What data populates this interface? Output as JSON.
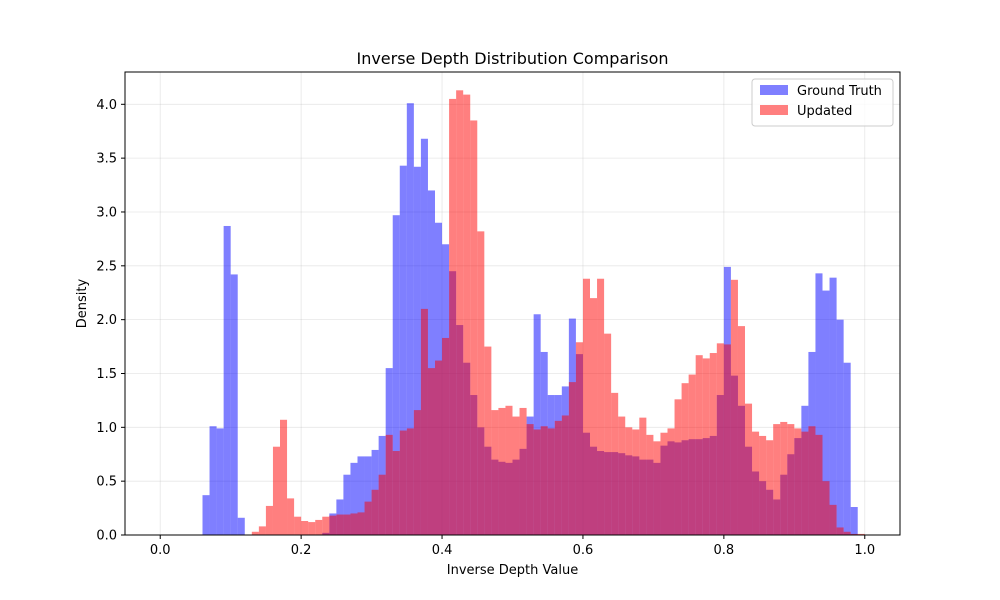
{
  "chart_data": {
    "type": "histogram",
    "title": "Inverse Depth Distribution Comparison",
    "xlabel": "Inverse Depth Value",
    "ylabel": "Density",
    "xlim": [
      -0.05,
      1.05
    ],
    "ylim": [
      0,
      4.3
    ],
    "bin_start": 0.0,
    "bin_width": 0.01,
    "xticks": [
      0.0,
      0.2,
      0.4,
      0.6,
      0.8,
      1.0
    ],
    "xtick_labels": [
      "0.0",
      "0.2",
      "0.4",
      "0.6",
      "0.8",
      "1.0"
    ],
    "yticks": [
      0.0,
      0.5,
      1.0,
      1.5,
      2.0,
      2.5,
      3.0,
      3.5,
      4.0
    ],
    "ytick_labels": [
      "0.0",
      "0.5",
      "1.0",
      "1.5",
      "2.0",
      "2.5",
      "3.0",
      "3.5",
      "4.0"
    ],
    "grid": true,
    "legend_position": "top-right",
    "overlap_color": "#c13c76",
    "series": [
      {
        "name": "Ground Truth",
        "color": "#0000ff",
        "alpha": 0.5,
        "values": [
          0,
          0,
          0,
          0,
          0,
          0,
          0.37,
          1.01,
          0.99,
          2.87,
          2.42,
          0.16,
          0,
          0,
          0,
          0,
          0,
          0,
          0,
          0,
          0,
          0,
          0,
          0.02,
          0.2,
          0.33,
          0.56,
          0.67,
          0.73,
          0.73,
          0.79,
          0.92,
          1.55,
          2.97,
          3.43,
          4.01,
          3.42,
          3.68,
          3.2,
          2.9,
          2.7,
          2.45,
          1.95,
          1.6,
          1.3,
          1.0,
          0.82,
          0.7,
          0.68,
          0.67,
          0.7,
          0.8,
          1.1,
          2.05,
          1.7,
          1.3,
          1.3,
          1.38,
          2.01,
          1.68,
          0.95,
          0.82,
          0.78,
          0.77,
          0.77,
          0.76,
          0.74,
          0.73,
          0.7,
          0.7,
          0.67,
          0.83,
          0.87,
          0.86,
          0.88,
          0.89,
          0.89,
          0.9,
          0.92,
          1.3,
          2.49,
          1.48,
          1.2,
          0.82,
          0.59,
          0.5,
          0.42,
          0.33,
          0.56,
          0.75,
          0.9,
          1.2,
          1.7,
          2.43,
          2.27,
          2.39,
          2.0,
          1.6,
          0.26,
          0,
          0
        ]
      },
      {
        "name": "Updated",
        "color": "#ff0000",
        "alpha": 0.5,
        "values": [
          0,
          0,
          0,
          0,
          0,
          0,
          0,
          0,
          0,
          0,
          0,
          0,
          0,
          0.03,
          0.08,
          0.27,
          0.82,
          1.07,
          0.34,
          0.17,
          0.13,
          0.12,
          0.14,
          0.17,
          0.18,
          0.19,
          0.19,
          0.2,
          0.21,
          0.31,
          0.42,
          0.56,
          0.93,
          0.78,
          0.97,
          0.99,
          1.16,
          2.1,
          1.55,
          1.62,
          1.83,
          4.05,
          4.13,
          4.09,
          3.85,
          2.82,
          1.75,
          1.16,
          1.18,
          1.2,
          1.1,
          1.18,
          1.03,
          0.98,
          1.01,
          0.99,
          1.06,
          1.11,
          1.42,
          1.79,
          2.38,
          2.2,
          2.38,
          1.87,
          1.32,
          1.1,
          1.0,
          0.98,
          1.09,
          0.93,
          0.87,
          0.95,
          0.99,
          1.26,
          1.41,
          1.49,
          1.67,
          1.64,
          1.69,
          1.78,
          1.77,
          2.37,
          1.94,
          1.22,
          0.96,
          0.92,
          0.88,
          1.03,
          1.05,
          1.03,
          0.99,
          0.96,
          1.01,
          0.93,
          0.5,
          0.28,
          0.07,
          0.03,
          0.01,
          0.01,
          0
        ]
      }
    ]
  }
}
